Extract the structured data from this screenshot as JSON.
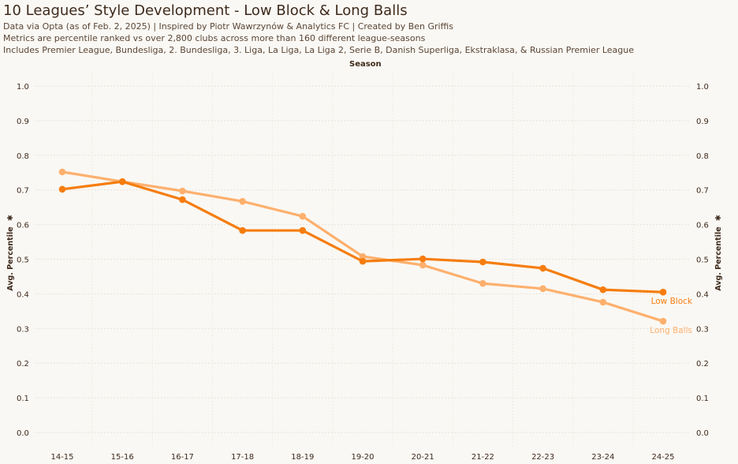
{
  "header": {
    "title": "10 Leagues’ Style Development - Low Block & Long Balls",
    "subtitle_lines": [
      "Data via Opta (as of Feb. 2, 2025) | Inspired by Piotr Wawrzynów & Analytics FC | Created by Ben Griffis",
      "Metrics are percentile ranked vs over 2,800 clubs across more than 160 different league-seasons",
      "Includes Premier League, Bundesliga, 2. Bundesliga, 3. Liga, La Liga, La Liga 2, Serie B, Danish Superliga, Ekstraklasa, & Russian Premier League"
    ]
  },
  "chart_data": {
    "type": "line",
    "title": "10 Leagues’ Style Development - Low Block & Long Balls",
    "xlabel": "Season",
    "ylabel": "Avg. Percentile",
    "ylabel_icon": "pin-icon",
    "categories": [
      "14-15",
      "15-16",
      "16-17",
      "17-18",
      "18-19",
      "19-20",
      "20-21",
      "21-22",
      "22-23",
      "23-24",
      "24-25"
    ],
    "ylim": [
      0.0,
      1.0
    ],
    "yticks": [
      "0.0",
      "0.1",
      "0.2",
      "0.3",
      "0.4",
      "0.5",
      "0.6",
      "0.7",
      "0.8",
      "0.9",
      "1.0"
    ],
    "grid": true,
    "series": [
      {
        "name": "Long Balls",
        "color": "#fdb06e",
        "values": [
          0.752,
          0.724,
          0.697,
          0.667,
          0.624,
          0.508,
          0.483,
          0.43,
          0.415,
          0.376,
          0.321
        ]
      },
      {
        "name": "Low Block",
        "color": "#f57d0f",
        "values": [
          0.702,
          0.724,
          0.672,
          0.583,
          0.583,
          0.494,
          0.501,
          0.492,
          0.474,
          0.412,
          0.405
        ]
      }
    ]
  }
}
